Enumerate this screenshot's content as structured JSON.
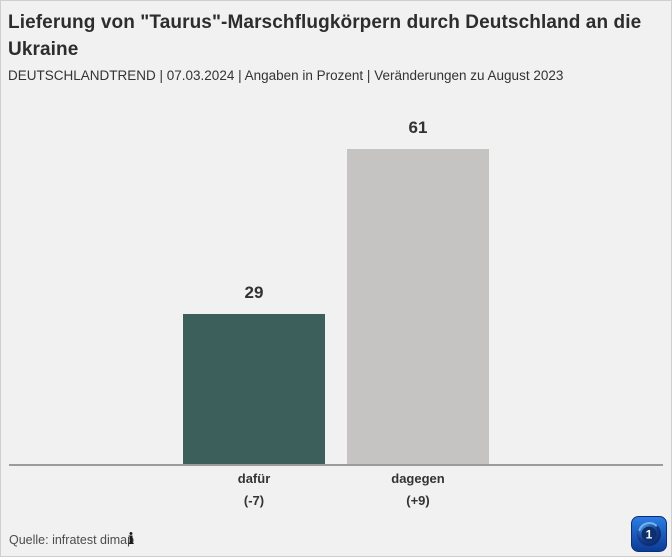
{
  "title": "Lieferung von \"Taurus\"-Marschflugkörpern durch Deutschland an die Ukraine",
  "subtitle": "DEUTSCHLANDTREND | 07.03.2024 | Angaben in Prozent | Veränderungen zu August 2023",
  "chart_data": {
    "type": "bar",
    "categories": [
      "dafür",
      "dagegen"
    ],
    "values": [
      29,
      61
    ],
    "changes": [
      "(-7)",
      "(+9)"
    ],
    "colors": [
      "#3d5f5b",
      "#c5c4c3"
    ],
    "title": "Lieferung von \"Taurus\"-Marschflugkörpern durch Deutschland an die Ukraine",
    "xlabel": "",
    "ylabel": "",
    "ylim": [
      0,
      65
    ],
    "grid": false,
    "legend": false,
    "axis_line_color": "#9b9b9b",
    "background": "#f1f1f1"
  },
  "footer": {
    "source": "Quelle: infratest dimap",
    "info_icon": "i"
  },
  "logo": {
    "name": "ARD",
    "accent_top": "#2e7de4",
    "accent_bottom": "#0a3a94"
  }
}
